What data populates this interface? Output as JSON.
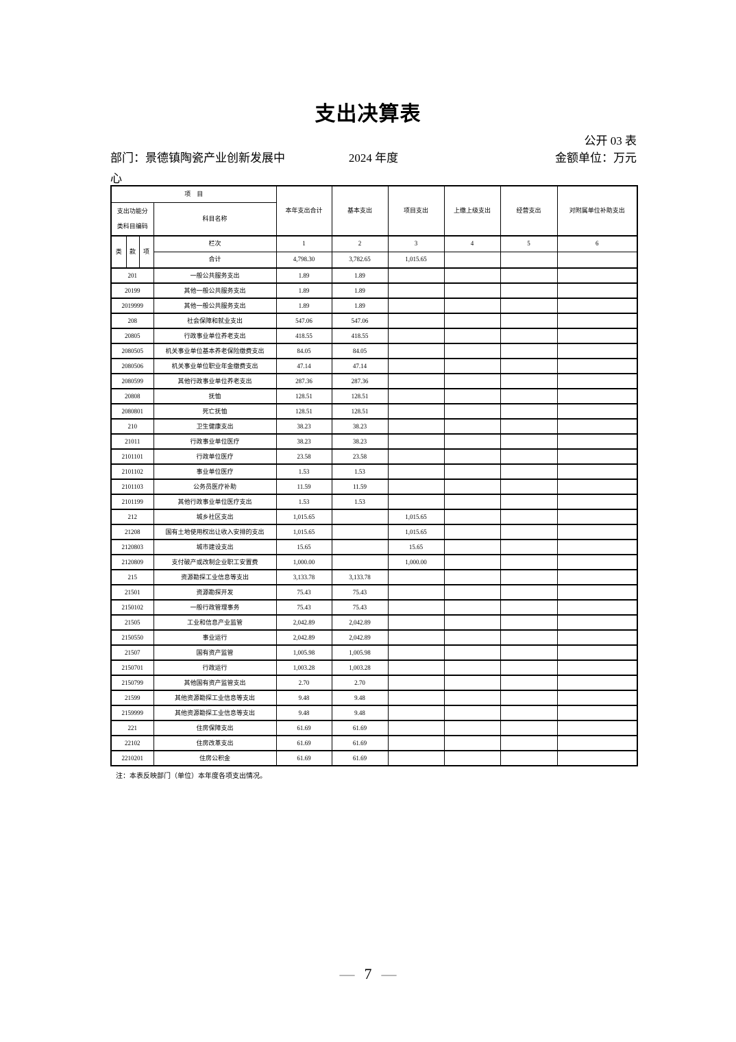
{
  "page": {
    "title": "支出决算表",
    "table_code": "公开 03 表",
    "department": "部门：景德镇陶瓷产业创新发展中心",
    "year": "2024 年度",
    "unit": "金额单位：万元",
    "note": "注：本表反映部门（单位）本年度各项支出情况。",
    "page_number": "7",
    "dash": "—"
  },
  "table": {
    "header": {
      "project": "项　目",
      "code_label": "支出功能分类科目编码",
      "subject_name": "科目名称",
      "columns": [
        "本年支出合计",
        "基本支出",
        "项目支出",
        "上缴上级支出",
        "经营支出",
        "对附属单位补助支出"
      ],
      "sub_code": [
        "类",
        "款",
        "项"
      ],
      "lanci_label": "栏次",
      "lanci_numbers": [
        "1",
        "2",
        "3",
        "4",
        "5",
        "6"
      ],
      "total_label": "合计",
      "total_values": [
        "4,798.30",
        "3,782.65",
        "1,015.65",
        "",
        "",
        ""
      ]
    },
    "rows": [
      {
        "code": "201",
        "name": "一般公共服务支出",
        "values": [
          "1.89",
          "1.89",
          "",
          "",
          "",
          ""
        ]
      },
      {
        "code": "20199",
        "name": "其他一般公共服务支出",
        "values": [
          "1.89",
          "1.89",
          "",
          "",
          "",
          ""
        ]
      },
      {
        "code": "2019999",
        "name": "其他一般公共服务支出",
        "values": [
          "1.89",
          "1.89",
          "",
          "",
          "",
          ""
        ]
      },
      {
        "code": "208",
        "name": "社会保障和就业支出",
        "values": [
          "547.06",
          "547.06",
          "",
          "",
          "",
          ""
        ]
      },
      {
        "code": "20805",
        "name": "行政事业单位养老支出",
        "values": [
          "418.55",
          "418.55",
          "",
          "",
          "",
          ""
        ]
      },
      {
        "code": "2080505",
        "name": "机关事业单位基本养老保险缴费支出",
        "values": [
          "84.05",
          "84.05",
          "",
          "",
          "",
          ""
        ]
      },
      {
        "code": "2080506",
        "name": "机关事业单位职业年金缴费支出",
        "values": [
          "47.14",
          "47.14",
          "",
          "",
          "",
          ""
        ]
      },
      {
        "code": "2080599",
        "name": "其他行政事业单位养老支出",
        "values": [
          "287.36",
          "287.36",
          "",
          "",
          "",
          ""
        ]
      },
      {
        "code": "20808",
        "name": "抚恤",
        "values": [
          "128.51",
          "128.51",
          "",
          "",
          "",
          ""
        ]
      },
      {
        "code": "2080801",
        "name": "死亡抚恤",
        "values": [
          "128.51",
          "128.51",
          "",
          "",
          "",
          ""
        ]
      },
      {
        "code": "210",
        "name": "卫生健康支出",
        "values": [
          "38.23",
          "38.23",
          "",
          "",
          "",
          ""
        ]
      },
      {
        "code": "21011",
        "name": "行政事业单位医疗",
        "values": [
          "38.23",
          "38.23",
          "",
          "",
          "",
          ""
        ]
      },
      {
        "code": "2101101",
        "name": "行政单位医疗",
        "values": [
          "23.58",
          "23.58",
          "",
          "",
          "",
          ""
        ]
      },
      {
        "code": "2101102",
        "name": "事业单位医疗",
        "values": [
          "1.53",
          "1.53",
          "",
          "",
          "",
          ""
        ]
      },
      {
        "code": "2101103",
        "name": "公务员医疗补助",
        "values": [
          "11.59",
          "11.59",
          "",
          "",
          "",
          ""
        ]
      },
      {
        "code": "2101199",
        "name": "其他行政事业单位医疗支出",
        "values": [
          "1.53",
          "1.53",
          "",
          "",
          "",
          ""
        ]
      },
      {
        "code": "212",
        "name": "城乡社区支出",
        "values": [
          "1,015.65",
          "",
          "1,015.65",
          "",
          "",
          ""
        ]
      },
      {
        "code": "21208",
        "name": "国有土地使用权出让收入安排的支出",
        "values": [
          "1,015.65",
          "",
          "1,015.65",
          "",
          "",
          ""
        ]
      },
      {
        "code": "2120803",
        "name": "城市建设支出",
        "values": [
          "15.65",
          "",
          "15.65",
          "",
          "",
          ""
        ]
      },
      {
        "code": "2120809",
        "name": "支付破产或改制企业职工安置费",
        "values": [
          "1,000.00",
          "",
          "1,000.00",
          "",
          "",
          ""
        ]
      },
      {
        "code": "215",
        "name": "资源勘探工业信息等支出",
        "values": [
          "3,133.78",
          "3,133.78",
          "",
          "",
          "",
          ""
        ]
      },
      {
        "code": "21501",
        "name": "资源勘探开发",
        "values": [
          "75.43",
          "75.43",
          "",
          "",
          "",
          ""
        ]
      },
      {
        "code": "2150102",
        "name": "一般行政管理事务",
        "values": [
          "75.43",
          "75.43",
          "",
          "",
          "",
          ""
        ]
      },
      {
        "code": "21505",
        "name": "工业和信息产业监管",
        "values": [
          "2,042.89",
          "2,042.89",
          "",
          "",
          "",
          ""
        ]
      },
      {
        "code": "2150550",
        "name": "事业运行",
        "values": [
          "2,042.89",
          "2,042.89",
          "",
          "",
          "",
          ""
        ]
      },
      {
        "code": "21507",
        "name": "国有资产监管",
        "values": [
          "1,005.98",
          "1,005.98",
          "",
          "",
          "",
          ""
        ]
      },
      {
        "code": "2150701",
        "name": "行政运行",
        "values": [
          "1,003.28",
          "1,003.28",
          "",
          "",
          "",
          ""
        ]
      },
      {
        "code": "2150799",
        "name": "其他国有资产监管支出",
        "values": [
          "2.70",
          "2.70",
          "",
          "",
          "",
          ""
        ]
      },
      {
        "code": "21599",
        "name": "其他资源勘探工业信息等支出",
        "values": [
          "9.48",
          "9.48",
          "",
          "",
          "",
          ""
        ]
      },
      {
        "code": "2159999",
        "name": "其他资源勘探工业信息等支出",
        "values": [
          "9.48",
          "9.48",
          "",
          "",
          "",
          ""
        ]
      },
      {
        "code": "221",
        "name": "住房保障支出",
        "values": [
          "61.69",
          "61.69",
          "",
          "",
          "",
          ""
        ]
      },
      {
        "code": "22102",
        "name": "住房改革支出",
        "values": [
          "61.69",
          "61.69",
          "",
          "",
          "",
          ""
        ]
      },
      {
        "code": "2210201",
        "name": "住房公积金",
        "values": [
          "61.69",
          "61.69",
          "",
          "",
          "",
          ""
        ]
      }
    ]
  }
}
